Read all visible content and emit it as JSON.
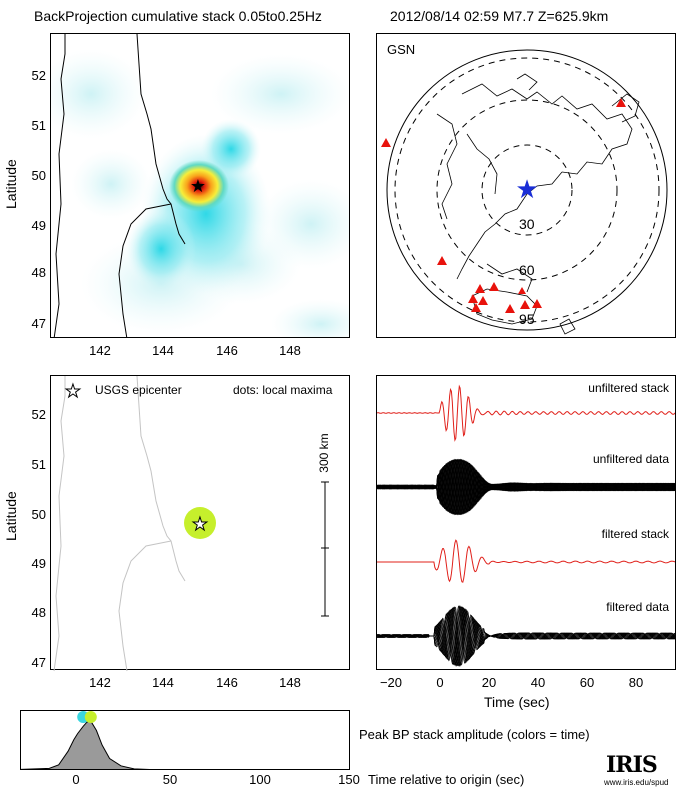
{
  "header": {
    "title": "BackProjection cumulative stack 0.05to0.25Hz",
    "event": "2012/08/14 02:59   M7.7   Z=625.9km"
  },
  "map_top": {
    "ylabel": "Latitude",
    "lat_ticks": [
      "47",
      "48",
      "49",
      "50",
      "51",
      "52"
    ],
    "lon_ticks": [
      "142",
      "144",
      "146",
      "148"
    ]
  },
  "globe": {
    "network": "GSN",
    "distance_labels": [
      "30",
      "60",
      "95"
    ],
    "colors": {
      "station": "#e8120c",
      "epicenter": "#1a2ed6"
    }
  },
  "map_bottom": {
    "ylabel": "Latitude",
    "legend_epicenter": "USGS epicenter",
    "legend_dots": "dots: local maxima",
    "scale_label": "300 km",
    "lat_ticks": [
      "47",
      "48",
      "49",
      "50",
      "51",
      "52"
    ],
    "lon_ticks": [
      "142",
      "144",
      "146",
      "148"
    ]
  },
  "traces": {
    "labels": [
      "unfiltered stack",
      "unfiltered data",
      "filtered stack",
      "filtered data"
    ],
    "xlabel": "Time (sec)",
    "x_ticks": [
      "−20",
      "0",
      "20",
      "40",
      "60",
      "80"
    ],
    "colors": {
      "stack": "#e0201a",
      "data": "#000000"
    }
  },
  "amplitude": {
    "label": "Peak BP stack amplitude (colors = time)",
    "xlabel": "Time relative to origin (sec)",
    "x_ticks": [
      "0",
      "50",
      "100",
      "150"
    ]
  },
  "logo": {
    "name": "IRIS",
    "url": "www.iris.edu/spud"
  },
  "chart_data": [
    {
      "type": "heatmap",
      "title": "BackProjection cumulative stack 0.05to0.25Hz",
      "ylabel": "Latitude",
      "xlim": [
        140.5,
        149.7
      ],
      "ylim": [
        46.8,
        52.8
      ],
      "peak": {
        "lon": 145.0,
        "lat": 49.8
      },
      "epicenter": {
        "lon": 145.1,
        "lat": 49.8
      }
    },
    {
      "type": "scatter",
      "ylabel": "Latitude",
      "xlim": [
        140.5,
        149.7
      ],
      "ylim": [
        46.8,
        52.8
      ],
      "local_maxima": [
        {
          "lon": 145.0,
          "lat": 49.8,
          "color": "#c6ef2c"
        }
      ],
      "epicenter": {
        "lon": 145.1,
        "lat": 49.8
      },
      "scale_km": 300
    },
    {
      "type": "line",
      "xlabel": "Time (sec)",
      "xlim": [
        -25,
        95
      ],
      "series": [
        {
          "name": "unfiltered stack"
        },
        {
          "name": "unfiltered data"
        },
        {
          "name": "filtered stack"
        },
        {
          "name": "filtered data"
        }
      ]
    },
    {
      "type": "area",
      "xlabel": "Time relative to origin (sec)",
      "xlim": [
        -25,
        150
      ],
      "ylim": [
        0,
        1
      ],
      "x": [
        -25,
        -10,
        -5,
        0,
        3,
        5,
        8,
        10,
        12,
        15,
        18,
        22,
        28,
        35,
        50,
        80,
        120,
        150
      ],
      "y": [
        0.03,
        0.05,
        0.12,
        0.38,
        0.6,
        0.72,
        0.86,
        0.94,
        0.96,
        0.78,
        0.5,
        0.24,
        0.1,
        0.04,
        0.02,
        0.015,
        0.01,
        0.01
      ],
      "peak_dots": [
        {
          "x": 8,
          "color": "#3ad6e0"
        },
        {
          "x": 12,
          "color": "#c6ef2c"
        }
      ]
    }
  ]
}
